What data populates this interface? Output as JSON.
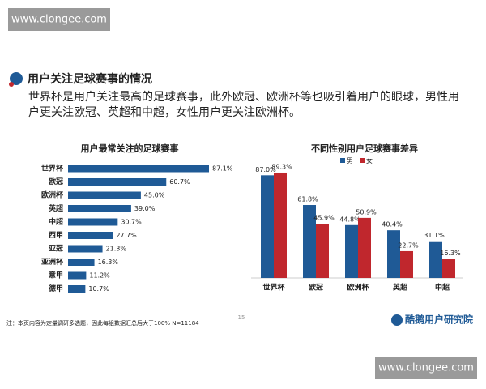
{
  "page": {
    "watermark_top": "www.clongee.com",
    "heading": "用户关注足球赛事的情况",
    "body": "世界杯是用户关注最高的足球赛事，此外欧冠、欧洲杯等也吸引着用户的眼球，男性用户更关注欧冠、英超和中超，女性用户更关注欧洲杯。",
    "footnote": "注：本页内容为定量调研多选题，因此每组数据汇总后大于100%  N=11184",
    "page_number": "15",
    "logo": "酷鹅用户研究院",
    "watermark_bottom": "www.clongee.com"
  },
  "chart_data": [
    {
      "type": "hbar",
      "title": "用户最常关注的足球赛事",
      "categories": [
        "世界杯",
        "欧冠",
        "欧洲杯",
        "英超",
        "中超",
        "西甲",
        "亚冠",
        "亚洲杯",
        "意甲",
        "德甲"
      ],
      "values": [
        87.1,
        60.7,
        45.0,
        39.0,
        30.7,
        27.7,
        21.3,
        16.3,
        11.2,
        10.7
      ],
      "value_labels": [
        "87.1%",
        "60.7%",
        "45.0%",
        "39.0%",
        "30.7%",
        "27.7%",
        "21.3%",
        "16.3%",
        "11.2%",
        "10.7%"
      ],
      "color": "#1f5a96"
    },
    {
      "type": "grouped_bar",
      "title": "不同性别用户足球赛事差异",
      "categories": [
        "世界杯",
        "欧冠",
        "欧洲杯",
        "英超",
        "中超"
      ],
      "series": [
        {
          "name": "男",
          "color": "#1f5a96",
          "values": [
            87.0,
            61.8,
            44.8,
            40.4,
            31.1
          ],
          "value_labels": [
            "87.0%",
            "61.8%",
            "44.8%",
            "40.4%",
            "31.1%"
          ]
        },
        {
          "name": "女",
          "color": "#c0272d",
          "values": [
            89.3,
            45.9,
            50.9,
            22.7,
            16.3
          ],
          "value_labels": [
            "89.3%",
            "45.9%",
            "50.9%",
            "22.7%",
            "16.3%"
          ]
        }
      ]
    }
  ]
}
